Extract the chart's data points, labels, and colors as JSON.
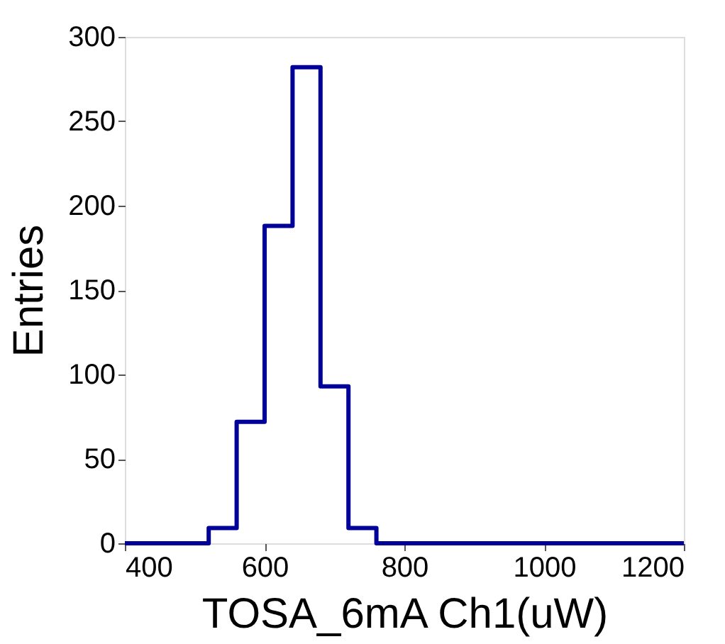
{
  "chart_data": {
    "type": "histogram",
    "xlabel": "TOSA_6mA Ch1(uW)",
    "ylabel": "Entries",
    "bins": [
      400,
      440,
      480,
      520,
      560,
      600,
      640,
      680,
      720,
      760,
      800,
      840,
      880,
      920,
      960,
      1000,
      1040,
      1080,
      1120,
      1160,
      1200
    ],
    "values": [
      0,
      0,
      0,
      9,
      72,
      188,
      282,
      93,
      9,
      0,
      0,
      0,
      0,
      0,
      0,
      0,
      0,
      0,
      0,
      0
    ],
    "color": "#000099",
    "xlim": [
      400,
      1200
    ],
    "ylim": [
      0,
      300
    ],
    "xticks": [
      400,
      600,
      800,
      1000,
      1200
    ],
    "yticks": [
      0,
      50,
      100,
      150,
      200,
      250,
      300
    ],
    "grid": false
  }
}
